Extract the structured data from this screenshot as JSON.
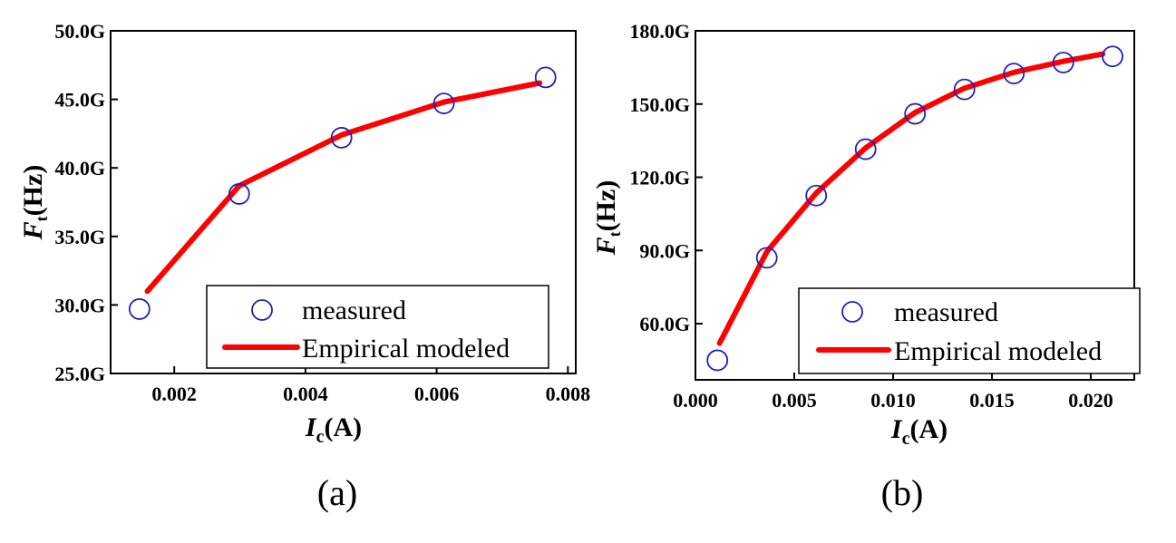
{
  "chart_data": [
    {
      "type": "scatter",
      "caption": "(a)",
      "xlabel": {
        "main": "I",
        "sub": "c",
        "unit": "(A)"
      },
      "ylabel": {
        "main": "F",
        "sub": "t",
        "unit": "(Hz)"
      },
      "xlim": [
        0.00103,
        0.00812
      ],
      "ylim": [
        25.0,
        50.0
      ],
      "xticks": [
        {
          "value": 0.002,
          "label": "0.002"
        },
        {
          "value": 0.004,
          "label": "0.004"
        },
        {
          "value": 0.006,
          "label": "0.006"
        },
        {
          "value": 0.008,
          "label": "0.008"
        }
      ],
      "yticks": [
        {
          "value": 25.0,
          "label": "25.0G"
        },
        {
          "value": 30.0,
          "label": "30.0G"
        },
        {
          "value": 35.0,
          "label": "35.0G"
        },
        {
          "value": 40.0,
          "label": "40.0G"
        },
        {
          "value": 45.0,
          "label": "45.0G"
        },
        {
          "value": 50.0,
          "label": "50.0G"
        }
      ],
      "legend": {
        "placement": "bottom-right",
        "entries": [
          "measured",
          "Empirical modeled"
        ]
      },
      "series": [
        {
          "name": "measured",
          "kind": "markers",
          "color": "#1f1fbf",
          "x": [
            0.00147,
            0.00299,
            0.00455,
            0.00611,
            0.00766
          ],
          "y": [
            29.7,
            38.1,
            42.2,
            44.7,
            46.6
          ]
        },
        {
          "name": "Empirical modeled",
          "kind": "line",
          "color": "#ff0000",
          "x": [
            0.00159,
            0.00299,
            0.00455,
            0.00611,
            0.00757
          ],
          "y": [
            31.0,
            38.7,
            42.4,
            44.8,
            46.2
          ]
        }
      ]
    },
    {
      "type": "scatter",
      "caption": "(b)",
      "xlabel": {
        "main": "I",
        "sub": "c",
        "unit": "(A)"
      },
      "ylabel": {
        "main": "F",
        "sub": "t",
        "unit": "(Hz)"
      },
      "xlim": [
        0.0,
        0.0222
      ],
      "ylim": [
        37.0,
        180.0
      ],
      "xticks": [
        {
          "value": 0.0,
          "label": "0.000"
        },
        {
          "value": 0.005,
          "label": "0.005"
        },
        {
          "value": 0.01,
          "label": "0.010"
        },
        {
          "value": 0.015,
          "label": "0.015"
        },
        {
          "value": 0.02,
          "label": "0.020"
        }
      ],
      "yticks": [
        {
          "value": 60.0,
          "label": "60.0G"
        },
        {
          "value": 90.0,
          "label": "90.0G"
        },
        {
          "value": 120.0,
          "label": "120.0G"
        },
        {
          "value": 150.0,
          "label": "150.0G"
        },
        {
          "value": 180.0,
          "label": "180.0G"
        }
      ],
      "legend": {
        "placement": "bottom-right",
        "entries": [
          "measured",
          "Empirical modeled"
        ]
      },
      "series": [
        {
          "name": "measured",
          "kind": "markers",
          "color": "#1f1fbf",
          "x": [
            0.00111,
            0.00361,
            0.00611,
            0.00861,
            0.01111,
            0.01361,
            0.01611,
            0.01861,
            0.0211
          ],
          "y": [
            45.0,
            87.0,
            112.5,
            131.5,
            146.0,
            156.0,
            162.5,
            167.0,
            169.5
          ]
        },
        {
          "name": "Empirical modeled",
          "kind": "line",
          "color": "#ff0000",
          "x": [
            0.00122,
            0.00361,
            0.00611,
            0.00861,
            0.01111,
            0.01361,
            0.01611,
            0.01861,
            0.0206
          ],
          "y": [
            52.0,
            89.5,
            113.5,
            132.0,
            146.5,
            156.5,
            163.0,
            167.5,
            170.5
          ]
        }
      ]
    }
  ]
}
